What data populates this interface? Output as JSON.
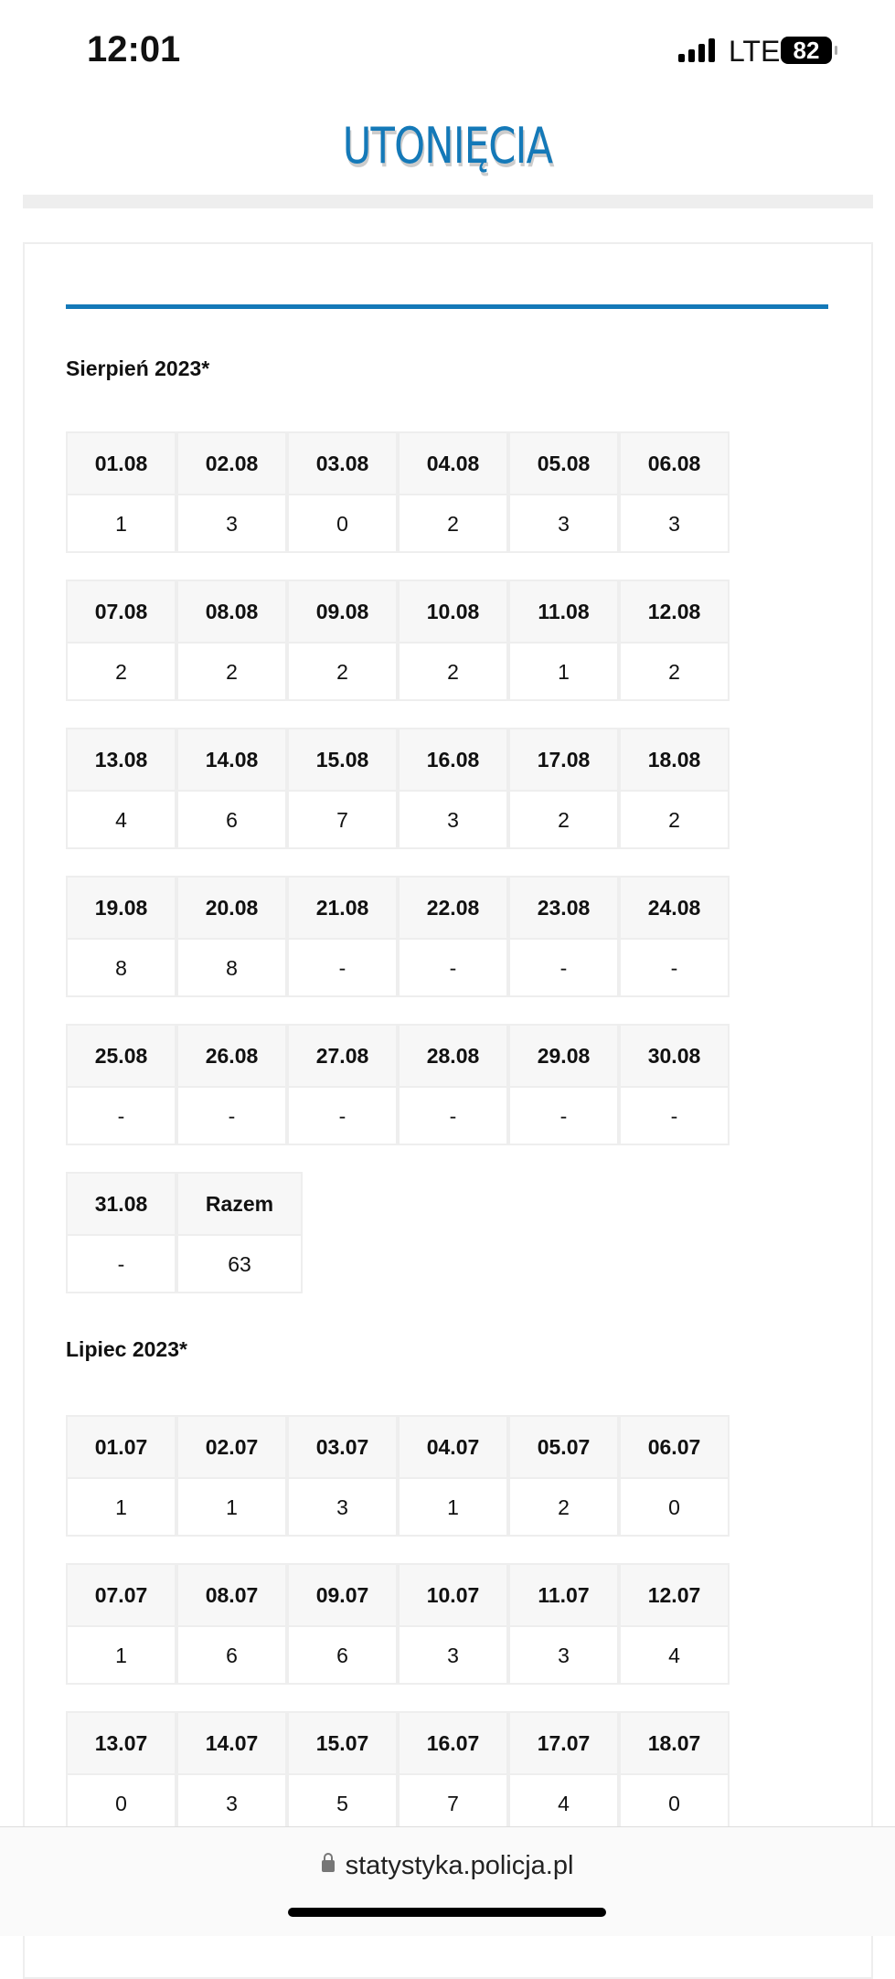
{
  "status": {
    "time": "12:01",
    "network": "LTE",
    "battery": "82"
  },
  "page": {
    "title": "UTONIĘCIA"
  },
  "months": [
    {
      "heading": "Sierpień 2023*",
      "rows": [
        [
          [
            "01.08",
            "1"
          ],
          [
            "02.08",
            "3"
          ],
          [
            "03.08",
            "0"
          ],
          [
            "04.08",
            "2"
          ],
          [
            "05.08",
            "3"
          ],
          [
            "06.08",
            "3"
          ]
        ],
        [
          [
            "07.08",
            "2"
          ],
          [
            "08.08",
            "2"
          ],
          [
            "09.08",
            "2"
          ],
          [
            "10.08",
            "2"
          ],
          [
            "11.08",
            "1"
          ],
          [
            "12.08",
            "2"
          ]
        ],
        [
          [
            "13.08",
            "4"
          ],
          [
            "14.08",
            "6"
          ],
          [
            "15.08",
            "7"
          ],
          [
            "16.08",
            "3"
          ],
          [
            "17.08",
            "2"
          ],
          [
            "18.08",
            "2"
          ]
        ],
        [
          [
            "19.08",
            "8"
          ],
          [
            "20.08",
            "8"
          ],
          [
            "21.08",
            "-"
          ],
          [
            "22.08",
            "-"
          ],
          [
            "23.08",
            "-"
          ],
          [
            "24.08",
            "-"
          ]
        ],
        [
          [
            "25.08",
            "-"
          ],
          [
            "26.08",
            "-"
          ],
          [
            "27.08",
            "-"
          ],
          [
            "28.08",
            "-"
          ],
          [
            "29.08",
            "-"
          ],
          [
            "30.08",
            "-"
          ]
        ],
        [
          [
            "31.08",
            "-"
          ],
          [
            "Razem",
            "63"
          ]
        ]
      ]
    },
    {
      "heading": "Lipiec 2023*",
      "rows": [
        [
          [
            "01.07",
            "1"
          ],
          [
            "02.07",
            "1"
          ],
          [
            "03.07",
            "3"
          ],
          [
            "04.07",
            "1"
          ],
          [
            "05.07",
            "2"
          ],
          [
            "06.07",
            "0"
          ]
        ],
        [
          [
            "07.07",
            "1"
          ],
          [
            "08.07",
            "6"
          ],
          [
            "09.07",
            "6"
          ],
          [
            "10.07",
            "3"
          ],
          [
            "11.07",
            "3"
          ],
          [
            "12.07",
            "4"
          ]
        ],
        [
          [
            "13.07",
            "0"
          ],
          [
            "14.07",
            "3"
          ],
          [
            "15.07",
            "5"
          ],
          [
            "16.07",
            "7"
          ],
          [
            "17.07",
            "4"
          ],
          [
            "18.07",
            "0"
          ]
        ]
      ]
    }
  ],
  "browser": {
    "url": "statystyka.policja.pl"
  }
}
